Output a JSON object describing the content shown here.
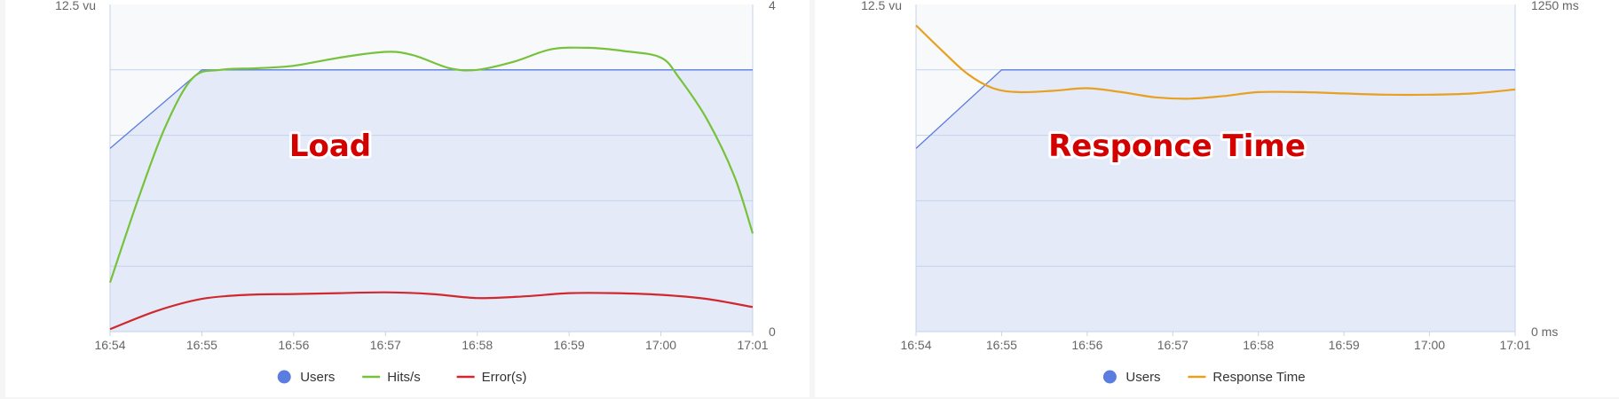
{
  "chart_data": [
    {
      "type": "line",
      "overlay_title": "Load",
      "x_ticks": [
        "16:54",
        "16:55",
        "16:56",
        "16:57",
        "16:58",
        "16:59",
        "17:00",
        "17:01"
      ],
      "xlim": [
        0,
        7
      ],
      "left_axis": {
        "top_label": "12.5 vu",
        "ylim": [
          0,
          12.5
        ]
      },
      "right_axis": {
        "top_label": "4",
        "bottom_label": "0",
        "ylim": [
          0,
          4
        ]
      },
      "grid": true,
      "legend_position": "bottom-center",
      "series": [
        {
          "name": "Users",
          "axis": "left",
          "color": "#5b7de0",
          "style": "area",
          "x": [
            0,
            1,
            7
          ],
          "values": [
            7,
            10,
            10
          ]
        },
        {
          "name": "Hits/s",
          "axis": "right",
          "color": "#76c23b",
          "style": "line",
          "x": [
            0,
            0.3,
            0.6,
            0.9,
            1.2,
            1.6,
            2.0,
            2.5,
            3.0,
            3.3,
            3.7,
            4.0,
            4.4,
            4.8,
            5.2,
            5.6,
            6.0,
            6.2,
            6.5,
            6.8,
            7.0
          ],
          "values": [
            0.6,
            1.6,
            2.5,
            3.1,
            3.2,
            3.22,
            3.25,
            3.35,
            3.42,
            3.38,
            3.22,
            3.2,
            3.3,
            3.45,
            3.47,
            3.43,
            3.35,
            3.1,
            2.6,
            1.9,
            1.2
          ]
        },
        {
          "name": "Error(s)",
          "axis": "right",
          "color": "#d0282e",
          "style": "line",
          "x": [
            0,
            0.5,
            1.0,
            1.5,
            2.0,
            2.5,
            3.0,
            3.5,
            4.0,
            4.5,
            5.0,
            5.5,
            6.0,
            6.5,
            7.0
          ],
          "values": [
            0.03,
            0.25,
            0.4,
            0.45,
            0.46,
            0.47,
            0.48,
            0.46,
            0.41,
            0.43,
            0.47,
            0.47,
            0.45,
            0.4,
            0.3
          ]
        }
      ],
      "legend": [
        {
          "label": "Users",
          "color": "#5b7de0",
          "marker": "circle"
        },
        {
          "label": "Hits/s",
          "color": "#76c23b",
          "marker": "line"
        },
        {
          "label": "Error(s)",
          "color": "#d0282e",
          "marker": "line"
        }
      ]
    },
    {
      "type": "line",
      "overlay_title": "Responce Time",
      "x_ticks": [
        "16:54",
        "16:55",
        "16:56",
        "16:57",
        "16:58",
        "16:59",
        "17:00",
        "17:01"
      ],
      "xlim": [
        0,
        7
      ],
      "left_axis": {
        "top_label": "12.5 vu",
        "ylim": [
          0,
          12.5
        ]
      },
      "right_axis": {
        "top_label": "1250 ms",
        "bottom_label": "0 ms",
        "ylim": [
          0,
          1250
        ]
      },
      "grid": true,
      "legend_position": "bottom-center",
      "series": [
        {
          "name": "Users",
          "axis": "left",
          "color": "#5b7de0",
          "style": "area",
          "x": [
            0,
            1,
            7
          ],
          "values": [
            7,
            10,
            10
          ]
        },
        {
          "name": "Response Time",
          "axis": "right",
          "color": "#e8a020",
          "style": "line",
          "x": [
            0,
            0.3,
            0.6,
            0.9,
            1.2,
            1.6,
            2.0,
            2.4,
            2.8,
            3.2,
            3.6,
            4.0,
            4.5,
            5.0,
            5.5,
            6.0,
            6.5,
            7.0
          ],
          "values": [
            1170,
            1075,
            985,
            930,
            915,
            920,
            930,
            915,
            895,
            890,
            900,
            915,
            915,
            910,
            905,
            905,
            910,
            925
          ]
        }
      ],
      "legend": [
        {
          "label": "Users",
          "color": "#5b7de0",
          "marker": "circle"
        },
        {
          "label": "Response Time",
          "color": "#e8a020",
          "marker": "line"
        }
      ]
    }
  ]
}
